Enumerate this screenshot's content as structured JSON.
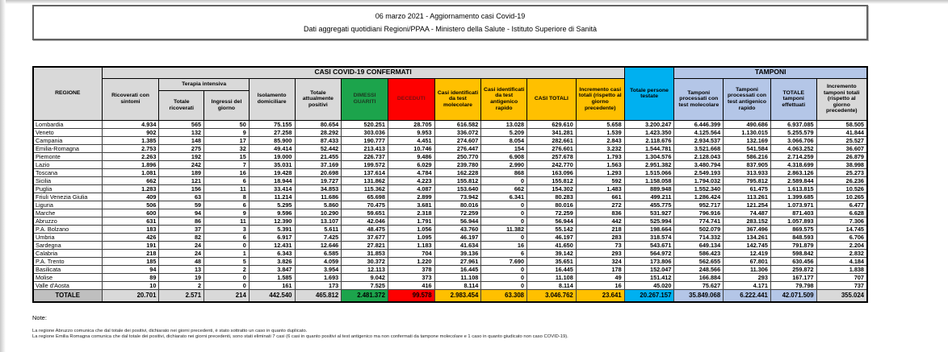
{
  "title": {
    "line1": "06 marzo 2021 - Aggiornamento casi Covid-19",
    "line2": "Dati aggregati quotidiani Regioni/PPAA - Ministero della Salute - Istituto Superiore di Sanità"
  },
  "colors": {
    "green": "#1CA44C",
    "red": "#FE0000",
    "yellow": "#FFC000",
    "cyan": "#00B0F0",
    "light_blue": "#B4C6E7",
    "gray_dark": "#BFBFBF",
    "gray_light": "#D9D9D9"
  },
  "table": {
    "group_headers": {
      "confirmed": "CASI COVID-19 CONFERMATI",
      "tamponi": "TAMPONI"
    },
    "columns": {
      "regione": "REGIONE",
      "ricoverati": "Ricoverati con sintomi",
      "terapia": "Terapia intensiva",
      "terapia_totale": "Totale ricoverati",
      "terapia_ingressi": "Ingressi del giorno",
      "isolamento": "Isolamento domiciliare",
      "positivi": "Totale attualmente positivi",
      "dimessi": "DIMESSI GUARITI",
      "deceduti": "DECEDUTI",
      "casi_molecolare": "Casi identificati da test molecolare",
      "casi_antigenico": "Casi identificati da test antigenico rapido",
      "casi_totali": "CASI TOTALI",
      "incremento_casi": "Incremento casi totali (rispetto al giorno precedente)",
      "persone_testate": "Totale persone testate",
      "tamponi_molecolare": "Tamponi processati con test molecolare",
      "tamponi_antigenico": "Tamponi processati con test antigenico rapido",
      "tamponi_totale": "TOTALE tamponi effettuati",
      "incremento_tamponi": "Incremento tamponi totali (rispetto al giorno precedente)"
    },
    "rows": [
      {
        "region": "Lombardia",
        "values": [
          "4.934",
          "565",
          "50",
          "75.155",
          "80.654",
          "520.251",
          "28.705",
          "616.582",
          "13.028",
          "629.610",
          "5.658",
          "3.200.247",
          "6.446.399",
          "490.686",
          "6.937.085",
          "58.505"
        ]
      },
      {
        "region": "Veneto",
        "values": [
          "902",
          "132",
          "9",
          "27.258",
          "28.292",
          "303.036",
          "9.953",
          "336.072",
          "5.209",
          "341.281",
          "1.539",
          "1.423.350",
          "4.125.564",
          "1.130.015",
          "5.255.579",
          "41.844"
        ]
      },
      {
        "region": "Campania",
        "values": [
          "1.385",
          "148",
          "17",
          "85.900",
          "87.433",
          "190.777",
          "4.451",
          "274.607",
          "8.054",
          "282.661",
          "2.843",
          "2.118.676",
          "2.934.537",
          "132.169",
          "3.066.706",
          "25.527"
        ]
      },
      {
        "region": "Emilia-Romagna",
        "values": [
          "2.753",
          "275",
          "32",
          "49.414",
          "52.442",
          "213.413",
          "10.746",
          "276.447",
          "154",
          "276.601",
          "3.232",
          "1.544.781",
          "3.521.668",
          "541.584",
          "4.063.252",
          "36.607"
        ]
      },
      {
        "region": "Piemonte",
        "values": [
          "2.263",
          "192",
          "15",
          "19.000",
          "21.455",
          "226.737",
          "9.486",
          "250.770",
          "6.908",
          "257.678",
          "1.793",
          "1.304.576",
          "2.128.043",
          "586.216",
          "2.714.259",
          "26.879"
        ]
      },
      {
        "region": "Lazio",
        "values": [
          "1.896",
          "242",
          "7",
          "35.031",
          "37.169",
          "199.572",
          "6.029",
          "239.780",
          "2.990",
          "242.770",
          "1.563",
          "2.951.382",
          "3.480.794",
          "837.905",
          "4.318.699",
          "38.998"
        ]
      },
      {
        "region": "Toscana",
        "values": [
          "1.081",
          "189",
          "16",
          "19.428",
          "20.698",
          "137.614",
          "4.784",
          "162.228",
          "868",
          "163.096",
          "1.293",
          "1.515.066",
          "2.549.193",
          "313.933",
          "2.863.126",
          "25.273"
        ]
      },
      {
        "region": "Sicilia",
        "values": [
          "662",
          "121",
          "6",
          "18.944",
          "19.727",
          "131.862",
          "4.223",
          "155.812",
          "0",
          "155.812",
          "592",
          "1.158.058",
          "1.794.032",
          "795.812",
          "2.589.844",
          "26.236"
        ]
      },
      {
        "region": "Puglia",
        "values": [
          "1.283",
          "156",
          "11",
          "33.414",
          "34.853",
          "115.362",
          "4.087",
          "153.640",
          "662",
          "154.302",
          "1.483",
          "889.948",
          "1.552.340",
          "61.475",
          "1.613.815",
          "10.526"
        ]
      },
      {
        "region": "Friuli Venezia Giulia",
        "values": [
          "409",
          "63",
          "8",
          "11.214",
          "11.686",
          "65.698",
          "2.899",
          "73.942",
          "6.341",
          "80.283",
          "661",
          "499.211",
          "1.286.424",
          "113.261",
          "1.399.685",
          "10.265"
        ]
      },
      {
        "region": "Liguria",
        "values": [
          "506",
          "59",
          "6",
          "5.295",
          "5.860",
          "70.475",
          "3.681",
          "80.016",
          "0",
          "80.016",
          "272",
          "455.775",
          "952.717",
          "121.254",
          "1.073.971",
          "6.477"
        ]
      },
      {
        "region": "Marche",
        "values": [
          "600",
          "94",
          "9",
          "9.596",
          "10.290",
          "59.651",
          "2.318",
          "72.259",
          "0",
          "72.259",
          "836",
          "531.927",
          "796.916",
          "74.487",
          "871.403",
          "6.628"
        ]
      },
      {
        "region": "Abruzzo",
        "values": [
          "631",
          "86",
          "11",
          "12.390",
          "13.107",
          "42.046",
          "1.791",
          "56.944",
          "0",
          "56.944",
          "442",
          "525.994",
          "774.741",
          "283.152",
          "1.057.893",
          "7.306"
        ]
      },
      {
        "region": "P.A. Bolzano",
        "values": [
          "183",
          "37",
          "3",
          "5.391",
          "5.611",
          "48.475",
          "1.056",
          "43.760",
          "11.382",
          "55.142",
          "218",
          "198.664",
          "502.079",
          "367.496",
          "869.575",
          "14.745"
        ]
      },
      {
        "region": "Umbria",
        "values": [
          "426",
          "82",
          "6",
          "6.917",
          "7.425",
          "37.677",
          "1.095",
          "46.197",
          "0",
          "46.197",
          "283",
          "318.574",
          "714.332",
          "134.261",
          "848.593",
          "6.706"
        ]
      },
      {
        "region": "Sardegna",
        "values": [
          "191",
          "24",
          "0",
          "12.431",
          "12.646",
          "27.821",
          "1.183",
          "41.634",
          "16",
          "41.650",
          "73",
          "543.671",
          "649.134",
          "142.745",
          "791.879",
          "2.204"
        ]
      },
      {
        "region": "Calabria",
        "values": [
          "218",
          "24",
          "1",
          "6.343",
          "6.585",
          "31.853",
          "704",
          "39.136",
          "6",
          "39.142",
          "293",
          "564.972",
          "586.423",
          "12.419",
          "598.842",
          "2.832"
        ]
      },
      {
        "region": "P.A. Trento",
        "values": [
          "185",
          "48",
          "5",
          "3.826",
          "4.059",
          "30.372",
          "1.220",
          "27.961",
          "7.690",
          "35.651",
          "324",
          "173.806",
          "562.655",
          "67.801",
          "630.456",
          "4.184"
        ]
      },
      {
        "region": "Basilicata",
        "values": [
          "94",
          "13",
          "2",
          "3.847",
          "3.954",
          "12.113",
          "378",
          "16.445",
          "0",
          "16.445",
          "178",
          "152.047",
          "248.566",
          "11.306",
          "259.872",
          "1.838"
        ]
      },
      {
        "region": "Molise",
        "values": [
          "89",
          "19",
          "0",
          "1.585",
          "1.693",
          "9.042",
          "373",
          "11.108",
          "0",
          "11.108",
          "49",
          "151.412",
          "166.884",
          "293",
          "167.177",
          "707"
        ]
      },
      {
        "region": "Valle d'Aosta",
        "values": [
          "10",
          "2",
          "0",
          "161",
          "173",
          "7.525",
          "416",
          "8.114",
          "0",
          "8.114",
          "16",
          "45.020",
          "75.627",
          "4.171",
          "79.798",
          "737"
        ]
      }
    ],
    "total_row": {
      "label": "TOTALE",
      "values": [
        "20.701",
        "2.571",
        "214",
        "442.540",
        "465.812",
        "2.481.372",
        "99.578",
        "2.983.454",
        "63.308",
        "3.046.762",
        "23.641",
        "20.267.157",
        "35.849.068",
        "6.222.441",
        "42.071.509",
        "355.024"
      ]
    }
  },
  "notes": {
    "heading": "Note:",
    "lines": [
      "La regione Abruzzo comunica che dal totale dei positivi, dichiarato nei giorni precedenti, è stato sottratto un caso in quanto duplicato.",
      "La regione Emilia Romagna comunica che dal totale dei positivi, dichiarato nei giorni precedenti, sono stati eliminati 7 casi (6 casi in quanto positivi al test antigenico ma non confermati da tampone molecolare e 1 caso in quanto giudicato non caso COVID-19)."
    ]
  }
}
